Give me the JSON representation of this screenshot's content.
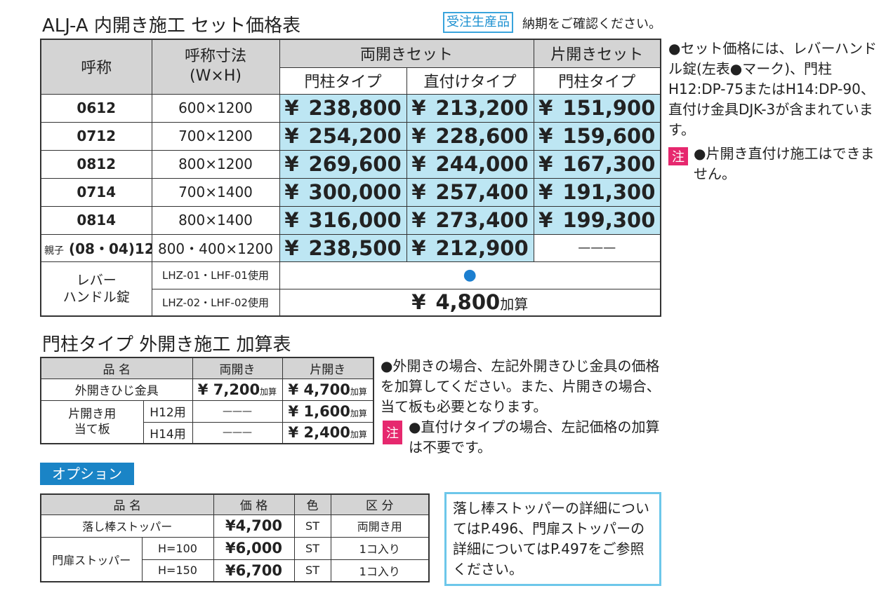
{
  "main_table": {
    "title": "ALJ-A 内開き施工 セット価格表",
    "badge": "受注生産品",
    "badge_note": "納期をご確認ください。",
    "head": {
      "name": "呼称",
      "size": "呼称寸法",
      "size_sub": "(W×H)",
      "double": "両開きセット",
      "single": "片開きセット",
      "post_type": "門柱タイプ",
      "direct_type": "直付けタイプ",
      "single_post_type": "門柱タイプ"
    },
    "rows": [
      {
        "name": "0612",
        "size": "600×1200",
        "post": "238,800",
        "direct": "213,200",
        "single": "151,900"
      },
      {
        "name": "0712",
        "size": "700×1200",
        "post": "254,200",
        "direct": "228,600",
        "single": "159,600"
      },
      {
        "name": "0812",
        "size": "800×1200",
        "post": "269,600",
        "direct": "244,000",
        "single": "167,300"
      },
      {
        "name": "0714",
        "size": "700×1400",
        "post": "300,000",
        "direct": "257,400",
        "single": "191,300"
      },
      {
        "name": "0814",
        "size": "800×1400",
        "post": "316,000",
        "direct": "273,400",
        "single": "199,300"
      }
    ],
    "oyako": {
      "prefix": "親子",
      "name": "(08・04)12",
      "size": "800・400×1200",
      "post": "238,500",
      "direct": "212,900",
      "single": "———"
    },
    "lever": {
      "label_1": "レバー",
      "label_2": "ハンドル錠",
      "opt1": "LHZ-01・LHF-01使用",
      "opt2": "LHZ-02・LHF-02使用",
      "opt1_mark": "●",
      "opt2_price": "4,800",
      "opt2_suffix": "加算"
    },
    "yen": "¥"
  },
  "side_notes": {
    "note1": "●セット価格には、レバーハンドル錠(左表●マーク)、門柱H12:DP-75またはH14:DP-90、直付け金具DJK-3が含まれています。",
    "chu": "注",
    "note2": "●片開き直付け施工はできません。"
  },
  "outer_table": {
    "title": "門柱タイプ 外開き施工 加算表",
    "head": {
      "name": "品 名",
      "double": "両開き",
      "single": "片開き"
    },
    "row1": {
      "name": "外開きひじ金具",
      "double": "7,200",
      "single": "4,700"
    },
    "row2": {
      "name_1": "片開き用",
      "name_2": "当て板",
      "h12": "H12用",
      "h14": "H14用",
      "dash": "———",
      "h12_price": "1,600",
      "h14_price": "2,400"
    },
    "add": "加算",
    "yen": "¥",
    "note1": "●外開きの場合、左記外開きひじ金具の価格を加算してください。また、片開きの場合、当て板も必要となります。",
    "chu": "注",
    "note2": "●直付けタイプの場合、左記価格の加算は不要です。"
  },
  "option_table": {
    "title": "オプション",
    "head": {
      "name": "品 名",
      "price": "価 格",
      "color": "色",
      "kind": "区 分"
    },
    "rows": [
      {
        "name": "落し棒ストッパー",
        "price": "4,700",
        "color": "ST",
        "kind": "両開き用"
      }
    ],
    "door_stopper": {
      "name": "門扉ストッパー",
      "h100": "H=100",
      "h150": "H=150",
      "p100": "6,000",
      "p150": "6,700",
      "color": "ST",
      "kind": "1コ入り"
    },
    "yen": "¥",
    "info": "落し棒ストッパーの詳細についてはP.496、門扉ストッパーの詳細についてはP.497をご参照ください。"
  }
}
